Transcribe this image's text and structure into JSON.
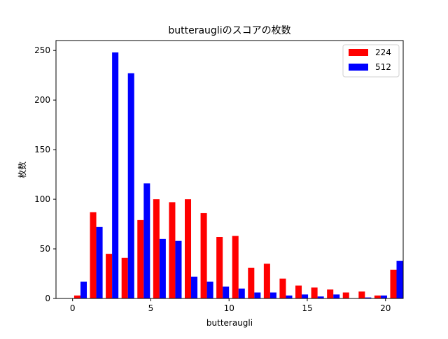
{
  "chart_data": {
    "type": "bar",
    "title": "butteraugliのスコアの枚数",
    "xlabel": "butteraugli",
    "ylabel": "枚数",
    "xlim": [
      -1.06,
      21.13
    ],
    "ylim": [
      0,
      260
    ],
    "xticks": [
      "0",
      "5",
      "10",
      "15",
      "20"
    ],
    "yticks": [
      "0",
      "50",
      "100",
      "150",
      "200",
      "250"
    ],
    "legend_position": "top-right",
    "grid": false,
    "bins": [
      0.0,
      1.01,
      2.02,
      3.03,
      4.04,
      5.05,
      6.06,
      7.07,
      8.08,
      9.09,
      10.1,
      11.11,
      12.12,
      13.13,
      14.14,
      15.15,
      16.16,
      17.17,
      18.18,
      19.19,
      20.2
    ],
    "bin_width": 1.01,
    "series": [
      {
        "name": "224",
        "color": "#ff0000",
        "values": [
          3,
          87,
          45,
          41,
          79,
          100,
          97,
          100,
          86,
          62,
          63,
          31,
          35,
          20,
          13,
          11,
          9,
          6,
          7,
          3,
          29
        ]
      },
      {
        "name": "512",
        "color": "#0000ff",
        "values": [
          17,
          72,
          248,
          227,
          116,
          60,
          58,
          22,
          17,
          12,
          10,
          6,
          6,
          3,
          4,
          2,
          4,
          0,
          1,
          3,
          38
        ]
      }
    ]
  }
}
